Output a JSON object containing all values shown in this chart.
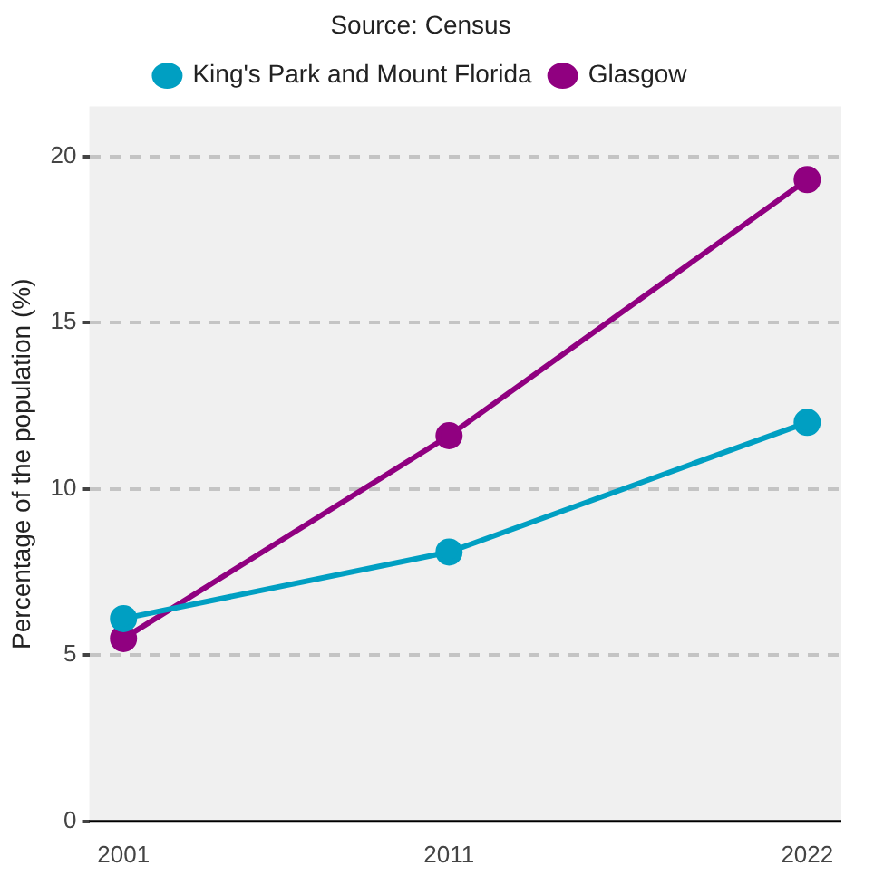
{
  "chart_data": {
    "type": "line",
    "title": "Source: Census",
    "ylabel": "Percentage of the population (%)",
    "x": [
      2001,
      2011,
      2022
    ],
    "series": [
      {
        "name": "King's Park and Mount Florida",
        "color": "#009fc2",
        "values": [
          6.1,
          8.1,
          12.0
        ]
      },
      {
        "name": "Glasgow",
        "color": "#900080",
        "values": [
          5.5,
          11.6,
          19.3
        ]
      }
    ],
    "xlim": [
      1999.95,
      2023.05
    ],
    "xticks": [
      2001,
      2011,
      2022
    ],
    "ylim": [
      0,
      21.5
    ],
    "yticks": [
      0,
      5,
      10,
      15,
      20
    ],
    "grid": "y",
    "legend": "top",
    "marker": "circle",
    "line_style": "solid"
  }
}
